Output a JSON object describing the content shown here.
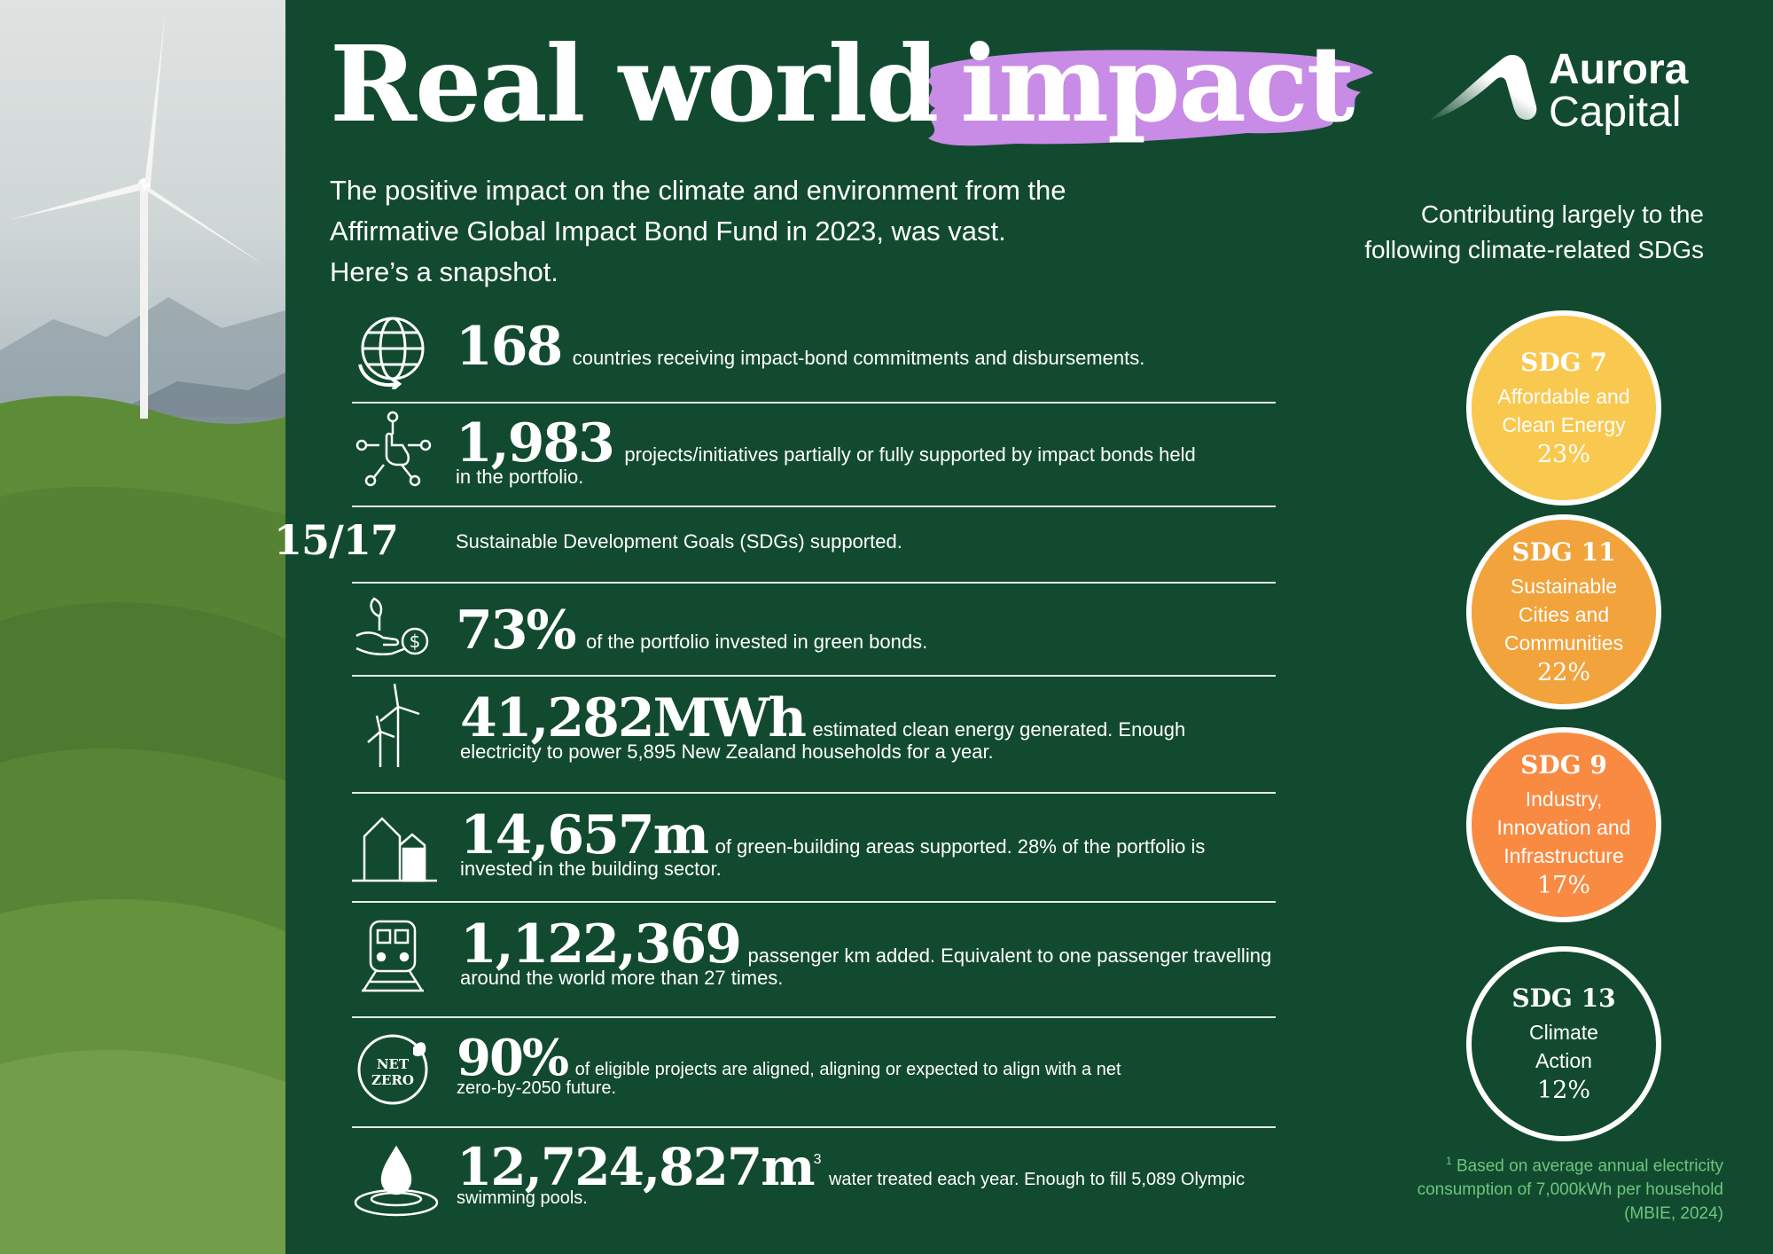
{
  "header": {
    "title_part1": "Real world",
    "title_part2": "impact",
    "highlight_color": "#c88be6"
  },
  "logo": {
    "name_line1": "Aurora",
    "name_line2": "Capital"
  },
  "intro": {
    "line1": "The positive impact on the climate and environment from the",
    "line2": "Affirmative Global Impact Bond Fund in 2023, was vast.",
    "line3": "Here’s a snapshot."
  },
  "sdg_intro": {
    "line1": "Contributing largely to the",
    "line2": "following climate-related SDGs"
  },
  "stats": [
    {
      "icon": "globe-arrow-icon",
      "value": "168",
      "desc1": "countries receiving impact-bond commitments and disbursements.",
      "desc2": ""
    },
    {
      "icon": "network-hand-icon",
      "value": "1,983",
      "desc1": "projects/initiatives partially or fully supported by impact bonds held",
      "desc2": "in the portfolio."
    },
    {
      "icon": "",
      "value": "15/17",
      "desc1": "Sustainable Development Goals  (SDGs) supported.",
      "desc2": ""
    },
    {
      "icon": "plant-money-hand-icon",
      "value": "73%",
      "desc1": "of the portfolio invested in green bonds.",
      "desc2": ""
    },
    {
      "icon": "wind-turbine-icon",
      "value": "41,282MWh",
      "desc1": "estimated clean energy generated. Enough",
      "desc2": "electricity to power 5,895 New Zealand households for a year."
    },
    {
      "icon": "green-building-icon",
      "value": "14,657m",
      "desc1": "of green-building areas supported. 28% of the portfolio is",
      "desc2": "invested in the building sector."
    },
    {
      "icon": "train-icon",
      "value": "1,122,369",
      "desc1": "passenger km added. Equivalent to one passenger travelling",
      "desc2": "around the world more than 27 times."
    },
    {
      "icon": "net-zero-icon",
      "icon_text1": "NET",
      "icon_text2": "ZERO",
      "value": "90%",
      "desc1": "of eligible projects are aligned, aligning or expected to align with a net",
      "desc2": "zero-by-2050 future."
    },
    {
      "icon": "water-drop-icon",
      "value": "12,724,827m",
      "value_sup": "3",
      "desc1": "water treated each year. Enough to fill 5,089 Olympic",
      "desc2": "swimming pools."
    }
  ],
  "sdgs": [
    {
      "name": "SDG 7",
      "line1": "Affordable and",
      "line2": "Clean Energy",
      "line3": "",
      "share": "23%",
      "share_value": 23,
      "color": "#f9c84f"
    },
    {
      "name": "SDG 11",
      "line1": "Sustainable",
      "line2": "Cities and",
      "line3": "Communities",
      "share": "22%",
      "share_value": 22,
      "color": "#f2a33b"
    },
    {
      "name": "SDG 9",
      "line1": "Industry,",
      "line2": "Innovation and",
      "line3": "Infrastructure",
      "share": "17%",
      "share_value": 17,
      "color": "#f98a42"
    },
    {
      "name": "SDG 13",
      "line1": "Climate",
      "line2": "Action",
      "line3": "",
      "share": "12%",
      "share_value": 12,
      "color": "#124a30"
    }
  ],
  "footnote": {
    "marker": "1",
    "line1": "Based on average annual electricity",
    "line2": "consumption of 7,000kWh per household",
    "line3": "(MBIE, 2024)"
  }
}
